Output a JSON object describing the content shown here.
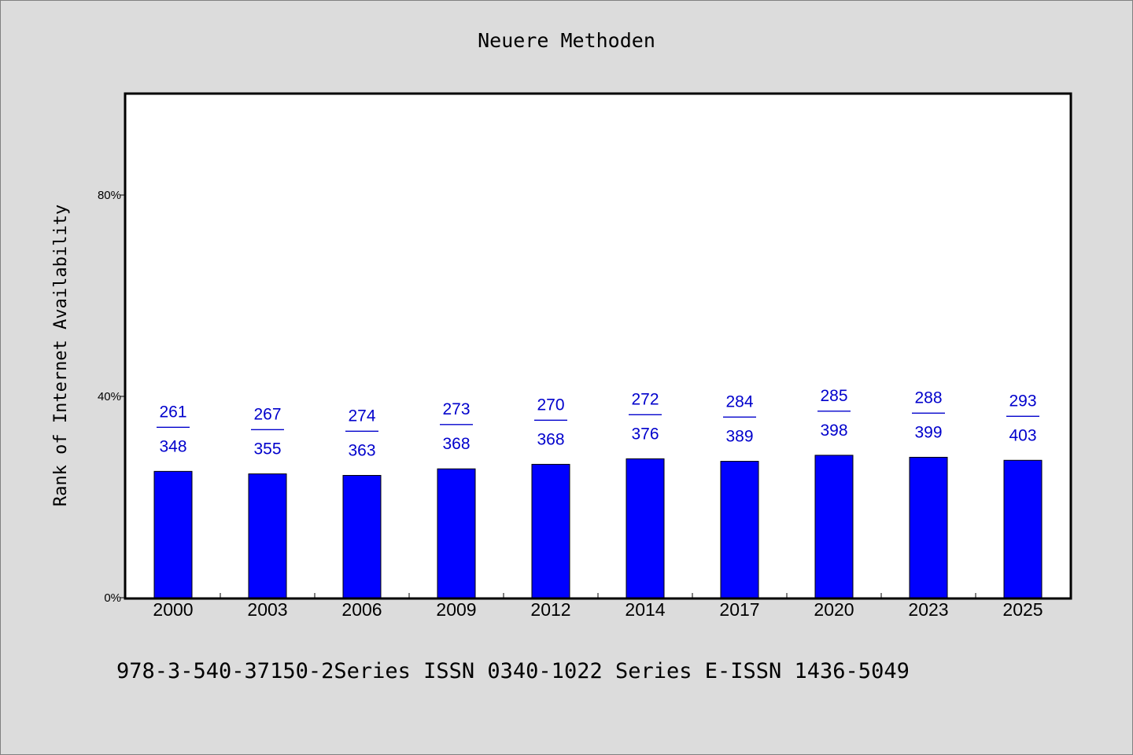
{
  "chart_data": {
    "type": "bar",
    "title": "Neuere Methoden",
    "xlabel": "",
    "ylabel": "Rank of Internet Availability",
    "ylim": [
      0,
      100
    ],
    "yticks": [
      0,
      40,
      80
    ],
    "ytick_labels": [
      "0%",
      "40%",
      "80%"
    ],
    "categories": [
      "2000",
      "2003",
      "2006",
      "2009",
      "2012",
      "2014",
      "2017",
      "2020",
      "2023",
      "2025"
    ],
    "values": [
      25.1,
      24.6,
      24.3,
      25.6,
      26.5,
      27.6,
      27.1,
      28.3,
      27.9,
      27.3
    ],
    "labels_top": [
      "261",
      "267",
      "274",
      "273",
      "270",
      "272",
      "284",
      "285",
      "288",
      "293"
    ],
    "labels_bottom": [
      "348",
      "355",
      "363",
      "368",
      "368",
      "376",
      "389",
      "398",
      "399",
      "403"
    ],
    "label_separator": "——",
    "colors": {
      "bar": "#0000ff",
      "label": "#0000cc",
      "background": "#dcdcdc",
      "plot": "#ffffff"
    },
    "grid": false
  },
  "footer": "978-3-540-37150-2Series ISSN 0340-1022 Series E-ISSN 1436-5049"
}
